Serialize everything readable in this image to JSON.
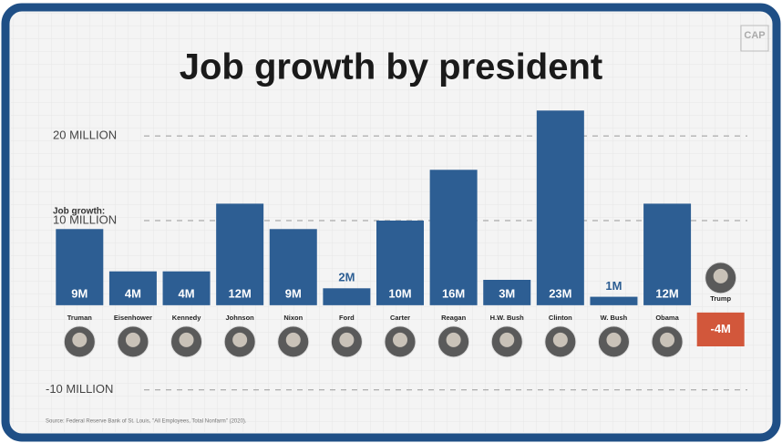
{
  "chart_data": {
    "type": "bar",
    "title": "Job growth by president",
    "logo": "CAP",
    "y_label": "Job growth:",
    "source": "Source: Federal Reserve Bank of St. Louis, \"All Employees, Total Nonfarm\" (2020).",
    "categories": [
      "Truman",
      "Eisenhower",
      "Kennedy",
      "Johnson",
      "Nixon",
      "Ford",
      "Carter",
      "Reagan",
      "H.W. Bush",
      "Clinton",
      "W. Bush",
      "Obama",
      "Trump"
    ],
    "values": [
      9,
      4,
      4,
      12,
      9,
      2,
      10,
      16,
      3,
      23,
      1,
      12,
      -4
    ],
    "value_labels": [
      "9M",
      "4M",
      "4M",
      "12M",
      "9M",
      "2M",
      "10M",
      "16M",
      "3M",
      "23M",
      "1M",
      "12M",
      "-4M"
    ],
    "color": "#2d5e93",
    "negative_color": "#d2573b",
    "ylim": [
      -11,
      24
    ],
    "yticks": [
      {
        "value": -10,
        "label": "-10 MILLION"
      },
      {
        "value": 10,
        "label": "10 MILLION"
      },
      {
        "value": 20,
        "label": "20 MILLION"
      }
    ],
    "grid": true
  }
}
